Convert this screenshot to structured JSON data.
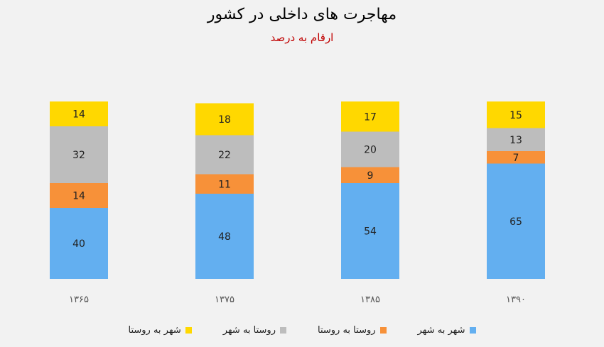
{
  "chart_data": {
    "type": "bar",
    "stacked": true,
    "title": "مهاجرت های داخلی در کشور",
    "subtitle": "ارقام به درصد",
    "categories": [
      "۱۳۶۵",
      "۱۳۷۵",
      "۱۳۸۵",
      "۱۳۹۰"
    ],
    "series": [
      {
        "name": "شهر به شهر",
        "color": "#63aff0",
        "values": [
          40,
          48,
          54,
          65
        ]
      },
      {
        "name": "روستا به روستا",
        "color": "#f79139",
        "values": [
          14,
          11,
          9,
          7
        ]
      },
      {
        "name": "روستا به شهر",
        "color": "#bdbdbd",
        "values": [
          32,
          22,
          20,
          13
        ]
      },
      {
        "name": "شهر به روستا",
        "color": "#ffd800",
        "values": [
          14,
          18,
          17,
          15
        ]
      }
    ],
    "legend_order": [
      "شهر به روستا",
      "روستا به شهر",
      "روستا به روستا",
      "شهر به شهر"
    ],
    "ylim": [
      0,
      100
    ],
    "grid": false,
    "legend_position": "bottom"
  }
}
